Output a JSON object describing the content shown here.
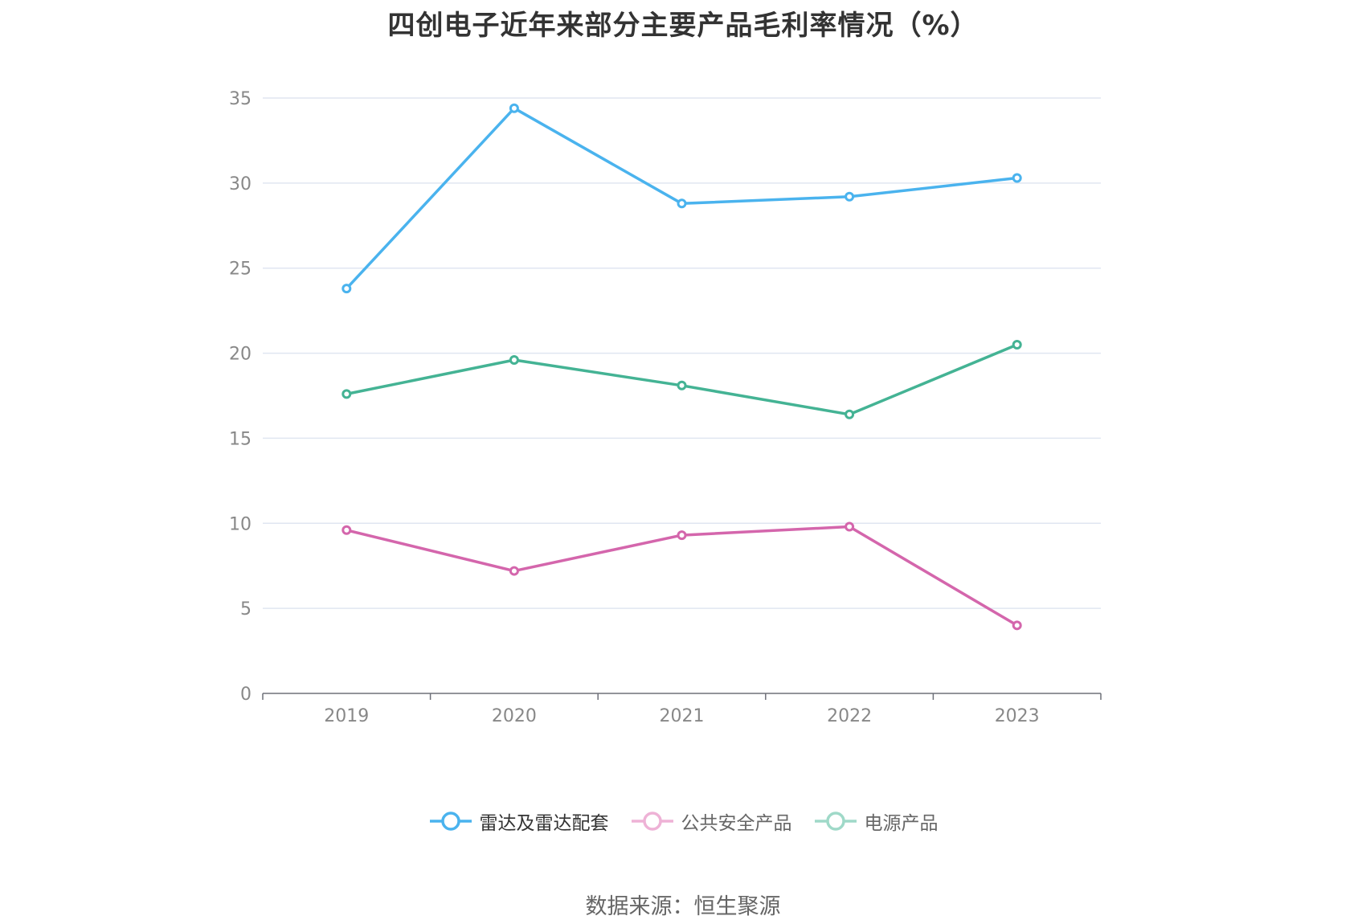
{
  "chart_data": {
    "type": "line",
    "title": "四创电子近年来部分主要产品毛利率情况（%）",
    "categories": [
      "2019",
      "2020",
      "2021",
      "2022",
      "2023"
    ],
    "ylim": [
      0,
      35
    ],
    "yticks": [
      0,
      5,
      10,
      15,
      20,
      25,
      30,
      35
    ],
    "grid": true,
    "legend_position": "bottom",
    "series": [
      {
        "name": "雷达及雷达配套",
        "values": [
          23.8,
          34.4,
          28.8,
          29.2,
          30.3
        ],
        "color": "#4ab3ee"
      },
      {
        "name": "公共安全产品",
        "values": [
          9.6,
          7.2,
          9.3,
          9.8,
          4.0
        ],
        "color": "#d466ac"
      },
      {
        "name": "电源产品",
        "values": [
          17.6,
          19.6,
          18.1,
          16.4,
          20.5
        ],
        "color": "#44b394"
      }
    ]
  },
  "legend_faded_colors": [
    "#4ab3ee",
    "#eeb2d6",
    "#9fd9c8"
  ],
  "source_note": "数据来源：恒生聚源"
}
